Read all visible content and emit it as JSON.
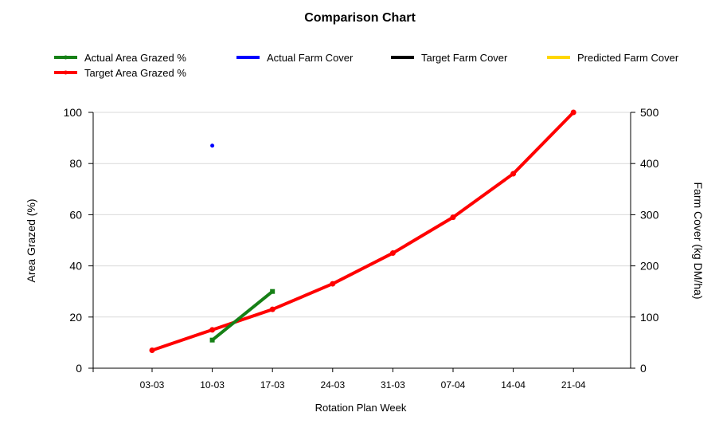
{
  "chart_data": {
    "type": "line",
    "title": "Comparison Chart",
    "xlabel": "Rotation Plan Week",
    "ylabel_left": "Area Grazed (%)",
    "ylabel_right": "Farm Cover (kg DM/ha)",
    "categories": [
      "03-03",
      "10-03",
      "17-03",
      "24-03",
      "31-03",
      "07-04",
      "14-04",
      "21-04"
    ],
    "ylim_left": [
      0,
      100
    ],
    "ylim_right": [
      0,
      500
    ],
    "yticks_left": [
      0,
      20,
      40,
      60,
      80,
      100
    ],
    "yticks_right": [
      0,
      100,
      200,
      300,
      400,
      500
    ],
    "grid": true,
    "legend_position": "top",
    "series": [
      {
        "name": "Actual Area Grazed %",
        "axis": "left",
        "color": "#168016",
        "values": [
          null,
          11,
          30,
          null,
          null,
          null,
          null,
          null
        ]
      },
      {
        "name": "Actual Farm Cover",
        "axis": "right",
        "color": "#0000ff",
        "values": [
          null,
          435,
          null,
          null,
          null,
          null,
          null,
          null
        ]
      },
      {
        "name": "Target Farm Cover",
        "axis": "right",
        "color": "#000000",
        "values": [
          null,
          null,
          null,
          null,
          null,
          null,
          null,
          null
        ]
      },
      {
        "name": "Predicted Farm Cover",
        "axis": "right",
        "color": "#ffd700",
        "values": [
          null,
          null,
          null,
          null,
          null,
          null,
          null,
          null
        ]
      },
      {
        "name": "Target Area Grazed %",
        "axis": "left",
        "color": "#ff0000",
        "values": [
          7,
          15,
          23,
          33,
          45,
          59,
          76,
          100
        ]
      }
    ]
  }
}
